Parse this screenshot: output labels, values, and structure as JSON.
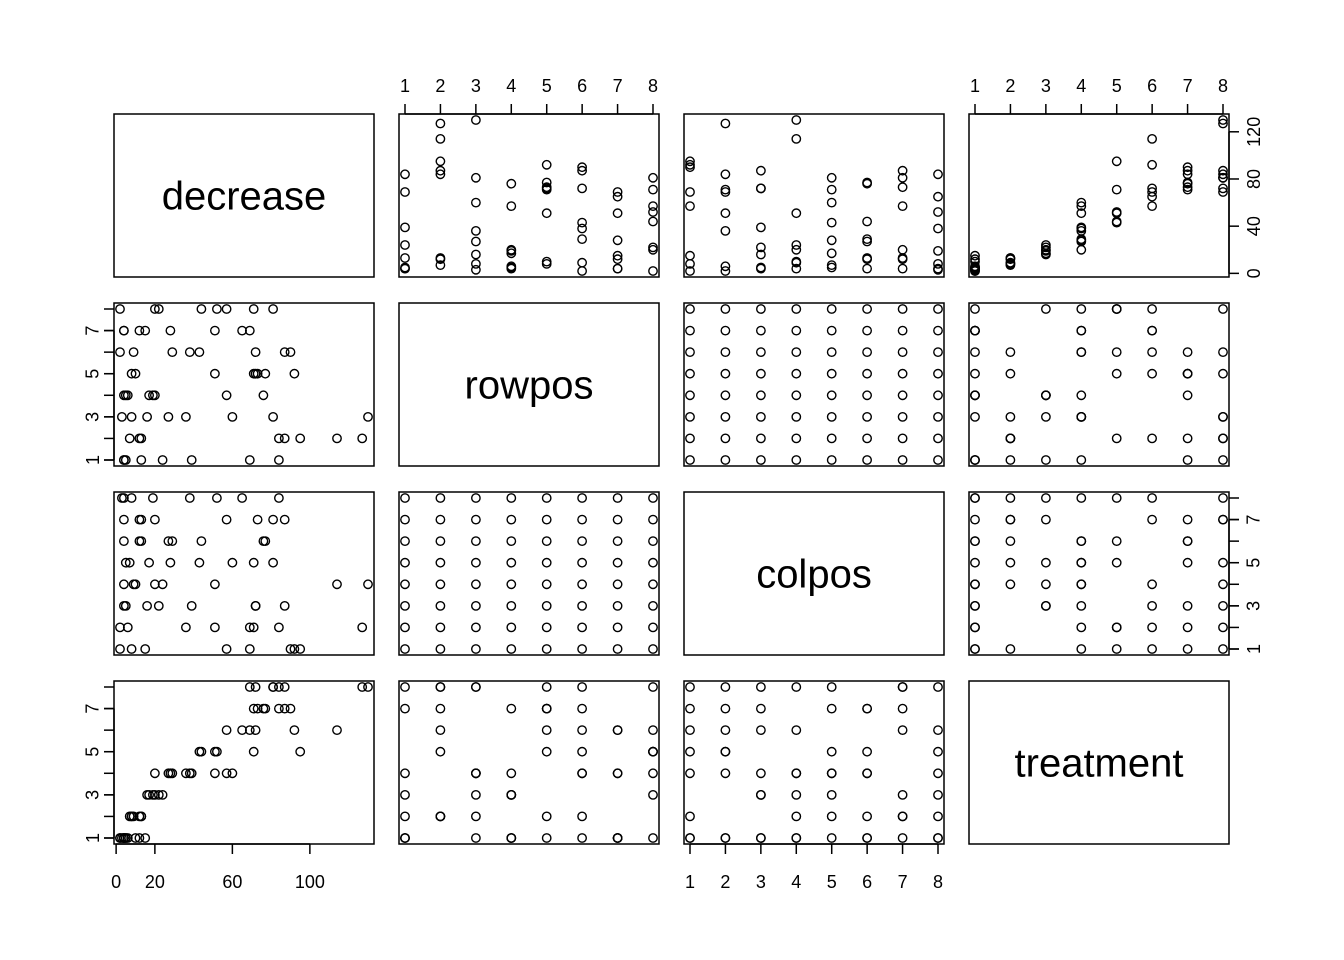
{
  "chart_data": {
    "type": "scatter",
    "variables": [
      "decrease",
      "rowpos",
      "colpos",
      "treatment"
    ],
    "ranges": {
      "decrease": [
        2,
        130
      ],
      "rowpos": [
        1,
        8
      ],
      "colpos": [
        1,
        8
      ],
      "treatment": [
        1,
        8
      ]
    },
    "axis_ticks": {
      "decrease_bottom": [
        "0",
        "20",
        "60",
        "100"
      ],
      "decrease_bottom_values": [
        0,
        20,
        60,
        100
      ],
      "decrease_right": [
        "0",
        "40",
        "80",
        "120"
      ],
      "decrease_right_values": [
        0,
        40,
        80,
        120
      ],
      "positional": [
        "1",
        "2",
        "3",
        "4",
        "5",
        "6",
        "7",
        "8"
      ],
      "positional_values": [
        1,
        2,
        3,
        4,
        5,
        6,
        7,
        8
      ],
      "positional_left": [
        "1",
        "3",
        "5",
        "7"
      ],
      "positional_left_values": [
        1,
        3,
        5,
        7
      ]
    },
    "grid": false,
    "legend": "none",
    "records": [
      [
        57,
        4,
        1,
        4
      ],
      [
        95,
        2,
        1,
        5
      ],
      [
        8,
        3,
        1,
        2
      ],
      [
        69,
        1,
        1,
        8
      ],
      [
        92,
        5,
        1,
        6
      ],
      [
        90,
        6,
        1,
        7
      ],
      [
        15,
        7,
        1,
        1
      ],
      [
        2,
        8,
        1,
        1
      ],
      [
        84,
        1,
        2,
        7
      ],
      [
        6,
        4,
        2,
        1
      ],
      [
        127,
        2,
        2,
        8
      ],
      [
        36,
        3,
        2,
        4
      ],
      [
        51,
        5,
        2,
        5
      ],
      [
        2,
        6,
        2,
        1
      ],
      [
        69,
        7,
        2,
        6
      ],
      [
        71,
        8,
        2,
        5
      ],
      [
        87,
        2,
        3,
        7
      ],
      [
        72,
        5,
        3,
        8
      ],
      [
        5,
        4,
        3,
        1
      ],
      [
        39,
        1,
        3,
        4
      ],
      [
        22,
        8,
        3,
        3
      ],
      [
        16,
        3,
        3,
        3
      ],
      [
        72,
        6,
        3,
        6
      ],
      [
        4,
        7,
        3,
        1
      ],
      [
        130,
        3,
        4,
        8
      ],
      [
        4,
        4,
        4,
        1
      ],
      [
        114,
        2,
        4,
        6
      ],
      [
        9,
        6,
        4,
        2
      ],
      [
        20,
        8,
        4,
        4
      ],
      [
        24,
        1,
        4,
        3
      ],
      [
        10,
        5,
        4,
        1
      ],
      [
        51,
        7,
        4,
        4
      ],
      [
        43,
        6,
        5,
        5
      ],
      [
        28,
        7,
        5,
        4
      ],
      [
        60,
        3,
        5,
        4
      ],
      [
        5,
        1,
        5,
        1
      ],
      [
        17,
        4,
        5,
        3
      ],
      [
        7,
        2,
        5,
        2
      ],
      [
        81,
        8,
        5,
        8
      ],
      [
        71,
        5,
        5,
        7
      ],
      [
        12,
        7,
        6,
        1
      ],
      [
        29,
        6,
        6,
        4
      ],
      [
        44,
        8,
        6,
        5
      ],
      [
        77,
        5,
        6,
        7
      ],
      [
        4,
        1,
        6,
        1
      ],
      [
        27,
        3,
        6,
        4
      ],
      [
        76,
        4,
        6,
        7
      ],
      [
        13,
        2,
        6,
        2
      ],
      [
        57,
        8,
        7,
        6
      ],
      [
        4,
        7,
        7,
        1
      ],
      [
        13,
        1,
        7,
        2
      ],
      [
        73,
        5,
        7,
        7
      ],
      [
        12,
        2,
        7,
        2
      ],
      [
        20,
        4,
        7,
        3
      ],
      [
        87,
        6,
        7,
        8
      ],
      [
        81,
        3,
        7,
        8
      ],
      [
        52,
        8,
        8,
        5
      ],
      [
        65,
        7,
        8,
        6
      ],
      [
        38,
        6,
        8,
        4
      ],
      [
        8,
        5,
        8,
        2
      ],
      [
        19,
        4,
        8,
        3
      ],
      [
        3,
        3,
        8,
        1
      ],
      [
        84,
        2,
        8,
        8
      ],
      [
        4,
        1,
        8,
        1
      ]
    ]
  }
}
